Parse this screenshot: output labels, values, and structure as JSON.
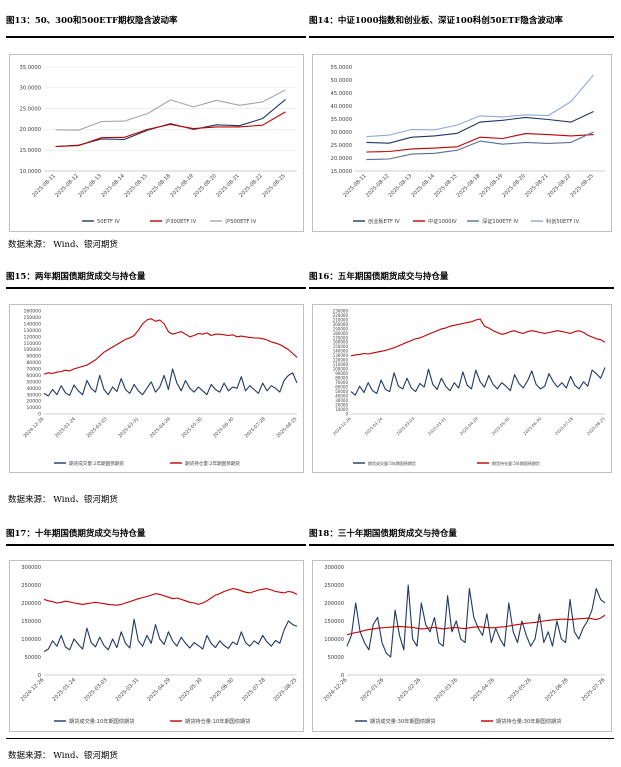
{
  "source_text": "数据来源：  Wind、银河期货",
  "chart_data": [
    {
      "id": "c13",
      "title": "图13：50、300和500ETF期权隐含波动率",
      "type": "line",
      "x": [
        "2025-08-11",
        "2025-08-12",
        "2025-08-13",
        "2025-08-14",
        "2025-08-15",
        "2025-08-18",
        "2025-08-19",
        "2025-08-20",
        "2025-08-21",
        "2025-08-22",
        "2025-08-25"
      ],
      "ylim": [
        10,
        35
      ],
      "yticks": [
        "10.0000",
        "15.0000",
        "20.0000",
        "25.0000",
        "30.0000",
        "35.0000"
      ],
      "series": [
        {
          "name": "50ETF IV",
          "color": "#1f3864",
          "values": [
            15.9,
            16.2,
            17.7,
            17.6,
            19.8,
            21.4,
            20.0,
            21.1,
            20.9,
            22.6,
            27.2
          ]
        },
        {
          "name": "沪300ETF IV",
          "color": "#c00000",
          "values": [
            15.9,
            16.1,
            18.0,
            18.1,
            20.0,
            21.2,
            20.2,
            20.6,
            20.6,
            21.0,
            24.2
          ]
        },
        {
          "name": "沪500ETF IV",
          "color": "#a6a6a6",
          "values": [
            19.9,
            19.8,
            21.9,
            22.0,
            23.8,
            27.1,
            25.4,
            27.0,
            25.8,
            26.6,
            29.5
          ]
        }
      ]
    },
    {
      "id": "c14",
      "title": "图14：中证1000指数和创业板、深证100科创50ETF隐含波动率",
      "type": "line",
      "x": [
        "2025-08-11",
        "2025-08-12",
        "2025-08-13",
        "2025-08-14",
        "2025-08-15",
        "2025-08-18",
        "2025-08-19",
        "2025-08-20",
        "2025-08-21",
        "2025-08-22",
        "2025-08-25"
      ],
      "ylim": [
        15,
        55
      ],
      "yticks": [
        "15.0000",
        "20.0000",
        "25.0000",
        "30.0000",
        "35.0000",
        "40.0000",
        "45.0000",
        "50.0000",
        "55.0000"
      ],
      "series": [
        {
          "name": "创业板ETF IV",
          "color": "#1f3864",
          "values": [
            26.0,
            25.7,
            28.0,
            28.5,
            29.5,
            33.8,
            34.5,
            35.6,
            34.8,
            33.8,
            37.9
          ]
        },
        {
          "name": "中证1000IV",
          "color": "#c00000",
          "values": [
            22.3,
            22.5,
            23.5,
            23.8,
            24.3,
            28.0,
            27.5,
            29.4,
            29.0,
            28.5,
            29.0
          ]
        },
        {
          "name": "深证100ETF IV",
          "color": "#5b6f8f",
          "values": [
            19.4,
            19.6,
            21.5,
            21.8,
            23.0,
            26.5,
            25.3,
            26.0,
            25.6,
            26.0,
            30.0
          ]
        },
        {
          "name": "科创50ETF IV",
          "color": "#8ea9db",
          "values": [
            28.2,
            28.8,
            31.0,
            30.8,
            32.7,
            36.2,
            35.8,
            36.6,
            36.3,
            41.7,
            52.0
          ]
        }
      ]
    },
    {
      "id": "c15",
      "title": "图15：两年期国债期货成交与持仓量",
      "type": "line",
      "x_ticks": [
        "2024-12-26",
        "2025-01-24",
        "2025-03-03",
        "2025-03-31",
        "2025-04-29",
        "2025-05-30",
        "2025-06-30",
        "2025-07-28",
        "2025-08-25"
      ],
      "ylim": [
        0,
        160000
      ],
      "yticks": [
        "0",
        "10000",
        "20000",
        "30000",
        "40000",
        "50000",
        "60000",
        "70000",
        "80000",
        "90000",
        "100000",
        "110000",
        "120000",
        "130000",
        "140000",
        "150000",
        "160000"
      ],
      "series": [
        {
          "name": "期货成交量:2年期国债期货",
          "color": "#1f3864",
          "values": [
            32000,
            28000,
            38000,
            30000,
            44000,
            33000,
            29000,
            45000,
            36000,
            30000,
            52000,
            40000,
            34000,
            60000,
            38000,
            30000,
            42000,
            35000,
            55000,
            38000,
            32000,
            46000,
            36000,
            30000,
            40000,
            50000,
            34000,
            42000,
            60000,
            38000,
            70000,
            48000,
            36000,
            52000,
            40000,
            34000,
            42000,
            36000,
            30000,
            46000,
            38000,
            34000,
            48000,
            36000,
            42000,
            40000,
            58000,
            36000,
            44000,
            38000,
            32000,
            48000,
            36000,
            44000,
            40000,
            34000,
            52000,
            60000,
            64000,
            48000
          ]
        },
        {
          "name": "期货持仓量:2年期国债期货",
          "color": "#c00000",
          "values": [
            62000,
            64000,
            63000,
            65000,
            66000,
            68000,
            67000,
            70000,
            72000,
            74000,
            76000,
            80000,
            84000,
            90000,
            96000,
            100000,
            104000,
            108000,
            112000,
            116000,
            118000,
            122000,
            130000,
            140000,
            146000,
            148000,
            144000,
            146000,
            140000,
            128000,
            124000,
            126000,
            128000,
            124000,
            120000,
            122000,
            125000,
            124000,
            126000,
            122000,
            124000,
            124000,
            123000,
            122000,
            123000,
            120000,
            121000,
            120000,
            119000,
            118000,
            118000,
            117000,
            115000,
            112000,
            110000,
            108000,
            104000,
            100000,
            94000,
            88000
          ]
        }
      ]
    },
    {
      "id": "c16",
      "title": "图16：五年期国债期货成交与持仓量",
      "type": "line",
      "x_ticks": [
        "2024-12-26",
        "2025-01-24",
        "2025-03-03",
        "2025-03-31",
        "2025-04-29",
        "2025-05-30",
        "2025-06-30",
        "2025-07-28",
        "2025-08-25"
      ],
      "ylim": [
        0,
        230000
      ],
      "yticks": [
        "0",
        "10000",
        "20000",
        "30000",
        "40000",
        "50000",
        "60000",
        "70000",
        "80000",
        "90000",
        "100000",
        "110000",
        "120000",
        "130000",
        "140000",
        "150000",
        "160000",
        "170000",
        "180000",
        "190000",
        "200000",
        "210000",
        "220000",
        "230000"
      ],
      "series": [
        {
          "name": "期货成交量:5年期国债期货",
          "color": "#1f3864",
          "values": [
            50000,
            42000,
            62000,
            48000,
            70000,
            52000,
            46000,
            76000,
            55000,
            50000,
            92000,
            62000,
            56000,
            80000,
            58000,
            50000,
            68000,
            60000,
            100000,
            66000,
            55000,
            80000,
            62000,
            52000,
            70000,
            58000,
            94000,
            64000,
            56000,
            98000,
            72000,
            60000,
            86000,
            66000,
            56000,
            70000,
            62000,
            52000,
            88000,
            68000,
            58000,
            74000,
            96000,
            66000,
            56000,
            62000,
            90000,
            72000,
            60000,
            70000,
            58000,
            84000,
            64000,
            56000,
            72000,
            62000,
            98000,
            90000,
            80000,
            104000
          ]
        },
        {
          "name": "期货持仓量:5年期国债期货",
          "color": "#c00000",
          "values": [
            130000,
            132000,
            133000,
            135000,
            134000,
            136000,
            138000,
            140000,
            142000,
            145000,
            148000,
            152000,
            156000,
            160000,
            164000,
            168000,
            170000,
            174000,
            178000,
            182000,
            186000,
            190000,
            192000,
            196000,
            198000,
            200000,
            202000,
            204000,
            206000,
            210000,
            212000,
            196000,
            192000,
            186000,
            182000,
            178000,
            180000,
            184000,
            186000,
            182000,
            180000,
            184000,
            186000,
            184000,
            182000,
            180000,
            182000,
            184000,
            186000,
            184000,
            182000,
            180000,
            184000,
            186000,
            182000,
            176000,
            172000,
            168000,
            166000,
            160000
          ]
        }
      ]
    },
    {
      "id": "c17",
      "title": "图17：十年期国债期货成交与持仓量",
      "type": "line",
      "x_ticks": [
        "2024-12-26",
        "2025-01-24",
        "2025-03-03",
        "2025-03-31",
        "2025-04-29",
        "2025-05-30",
        "2025-06-30",
        "2025-07-28",
        "2025-08-25"
      ],
      "ylim": [
        0,
        300000
      ],
      "yticks": [
        "0",
        "50000",
        "100000",
        "150000",
        "200000",
        "250000",
        "300000"
      ],
      "series": [
        {
          "name": "期货成交量:10年期国债期货",
          "color": "#1f3864",
          "values": [
            65000,
            72000,
            95000,
            80000,
            110000,
            78000,
            70000,
            100000,
            85000,
            72000,
            130000,
            90000,
            78000,
            105000,
            82000,
            70000,
            100000,
            76000,
            120000,
            88000,
            75000,
            155000,
            95000,
            80000,
            110000,
            88000,
            140000,
            100000,
            85000,
            120000,
            95000,
            80000,
            105000,
            88000,
            75000,
            90000,
            82000,
            72000,
            110000,
            88000,
            76000,
            95000,
            82000,
            74000,
            92000,
            84000,
            120000,
            90000,
            80000,
            95000,
            86000,
            110000,
            92000,
            80000,
            96000,
            88000,
            125000,
            150000,
            140000,
            135000
          ]
        },
        {
          "name": "期货持仓量:10年期国债期货",
          "color": "#c00000",
          "values": [
            210000,
            206000,
            204000,
            200000,
            202000,
            205000,
            203000,
            200000,
            198000,
            196000,
            198000,
            200000,
            202000,
            200000,
            198000,
            196000,
            195000,
            194000,
            196000,
            200000,
            204000,
            208000,
            212000,
            215000,
            218000,
            222000,
            226000,
            224000,
            220000,
            216000,
            212000,
            214000,
            210000,
            206000,
            202000,
            200000,
            196000,
            200000,
            206000,
            214000,
            222000,
            226000,
            232000,
            236000,
            240000,
            238000,
            234000,
            230000,
            228000,
            232000,
            236000,
            238000,
            240000,
            236000,
            232000,
            230000,
            228000,
            232000,
            230000,
            224000
          ]
        }
      ]
    },
    {
      "id": "c18",
      "title": "图18：三十年期国债期货成交与持仓量",
      "type": "line",
      "x_ticks": [
        "2024-12-26",
        "2025-01-26",
        "2025-02-26",
        "2025-03-26",
        "2025-04-26",
        "2025-05-26",
        "2025-06-26",
        "2025-07-26"
      ],
      "ylim": [
        0,
        300000
      ],
      "yticks": [
        "0",
        "50000",
        "100000",
        "150000",
        "200000",
        "250000",
        "300000"
      ],
      "series": [
        {
          "name": "期货成交量:30年期国债期货",
          "color": "#1f3864",
          "values": [
            80000,
            110000,
            200000,
            120000,
            90000,
            70000,
            140000,
            160000,
            90000,
            60000,
            50000,
            180000,
            110000,
            70000,
            250000,
            100000,
            80000,
            200000,
            140000,
            120000,
            160000,
            90000,
            80000,
            220000,
            120000,
            150000,
            100000,
            90000,
            240000,
            160000,
            130000,
            110000,
            170000,
            90000,
            130000,
            100000,
            80000,
            200000,
            120000,
            90000,
            150000,
            110000,
            80000,
            100000,
            170000,
            90000,
            120000,
            80000,
            150000,
            100000,
            90000,
            210000,
            120000,
            100000,
            130000,
            150000,
            180000,
            240000,
            210000,
            200000
          ]
        },
        {
          "name": "期货持仓量:30年期国债期货",
          "color": "#c00000",
          "values": [
            112000,
            115000,
            118000,
            120000,
            124000,
            126000,
            128000,
            130000,
            131000,
            132000,
            133000,
            134000,
            135000,
            134000,
            133000,
            132000,
            130000,
            128000,
            129000,
            131000,
            132000,
            130000,
            128000,
            130000,
            131000,
            132000,
            130000,
            129000,
            131000,
            133000,
            134000,
            133000,
            132000,
            131000,
            132000,
            133000,
            134000,
            136000,
            138000,
            140000,
            142000,
            144000,
            145000,
            146000,
            148000,
            150000,
            152000,
            153000,
            154000,
            155000,
            155000,
            154000,
            155000,
            156000,
            157000,
            158000,
            156000,
            154000,
            158000,
            166000
          ]
        }
      ]
    }
  ]
}
